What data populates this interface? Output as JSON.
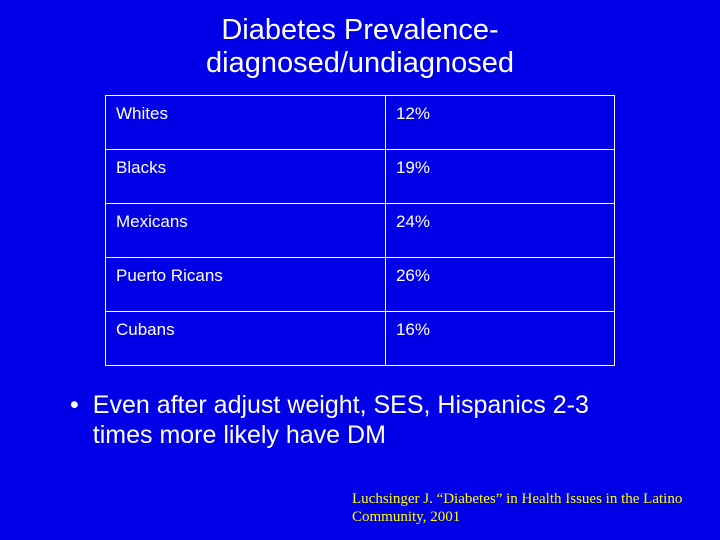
{
  "slide": {
    "background_color": "#0000e6",
    "text_color": "#ffffff",
    "accent_color": "#ffff00",
    "title_line1": "Diabetes Prevalence-",
    "title_line2": "diagnosed/undiagnosed",
    "title_fontsize": 29,
    "table": {
      "border_color": "#ffffff",
      "cell_fontsize": 17,
      "col_widths_pct": [
        55,
        45
      ],
      "rows": [
        {
          "label": "Whites",
          "value": "12%"
        },
        {
          "label": "Blacks",
          "value": "19%"
        },
        {
          "label": "Mexicans",
          "value": "24%"
        },
        {
          "label": "Puerto Ricans",
          "value": "26%"
        },
        {
          "label": "Cubans",
          "value": "16%"
        }
      ]
    },
    "bullet": {
      "marker": "•",
      "text": "Even after adjust weight, SES, Hispanics 2-3 times more likely have DM",
      "fontsize": 25
    },
    "citation": {
      "text": "Luchsinger J. “Diabetes” in Health Issues in the Latino Community, 2001",
      "fontsize": 15,
      "color": "#ffff00"
    }
  }
}
